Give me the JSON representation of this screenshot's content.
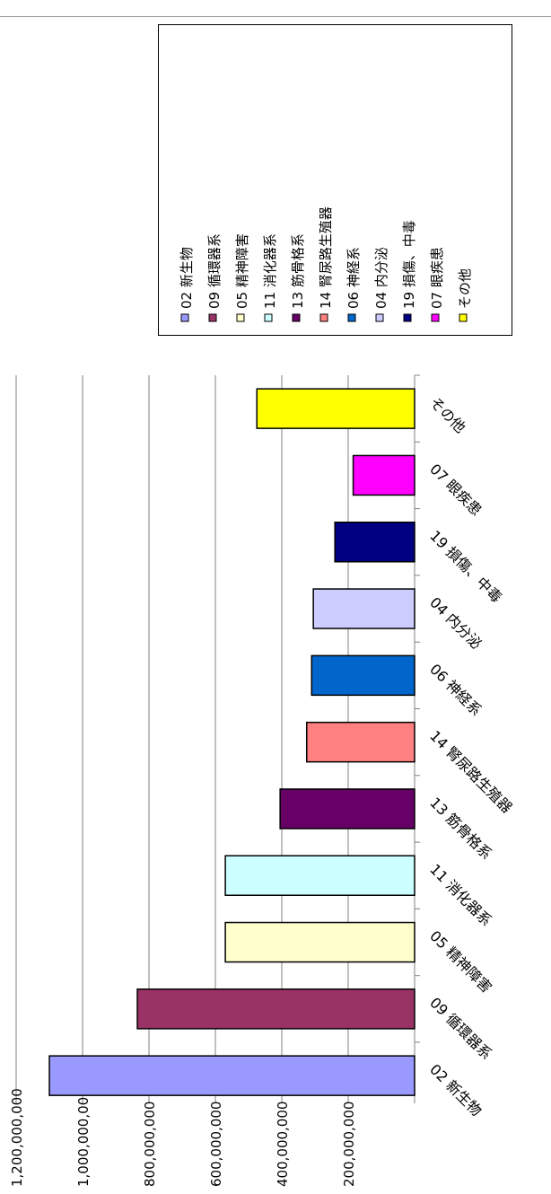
{
  "chart_data": {
    "type": "bar",
    "title": "",
    "categories": [
      "02 新生物",
      "09 循環器系",
      "05 精神障害",
      "11 消化器系",
      "13 筋骨格系",
      "14 腎尿路生殖器",
      "06 神経系",
      "04 内分泌",
      "19 損傷、中毒",
      "07 眼疾患",
      "その他"
    ],
    "values": [
      1100000000,
      835000000,
      570000000,
      570000000,
      405000000,
      325000000,
      310000000,
      305000000,
      240000000,
      185000000,
      475000000
    ],
    "colors": [
      "#9999ff",
      "#993366",
      "#ffffcc",
      "#ccffff",
      "#660066",
      "#ff8080",
      "#0066cc",
      "#ccccff",
      "#000080",
      "#ff00ff",
      "#ffff00"
    ],
    "ylim": [
      0,
      1200000000
    ],
    "yticks": [
      "1,200,000,000",
      "1,000,000,000",
      "800,000,000",
      "600,000,000",
      "400,000,000",
      "200,000,000"
    ],
    "grid": true,
    "orientation": "rotated-90",
    "legend_position": "top-right",
    "legend": [
      "02 新生物",
      "09 循環器系",
      "05 精神障害",
      "11 消化器系",
      "13 筋骨格系",
      "14 腎尿路生殖器",
      "06 神経系",
      "04 内分泌",
      "19 損傷、中毒",
      "07 眼疾患",
      "その他"
    ]
  }
}
